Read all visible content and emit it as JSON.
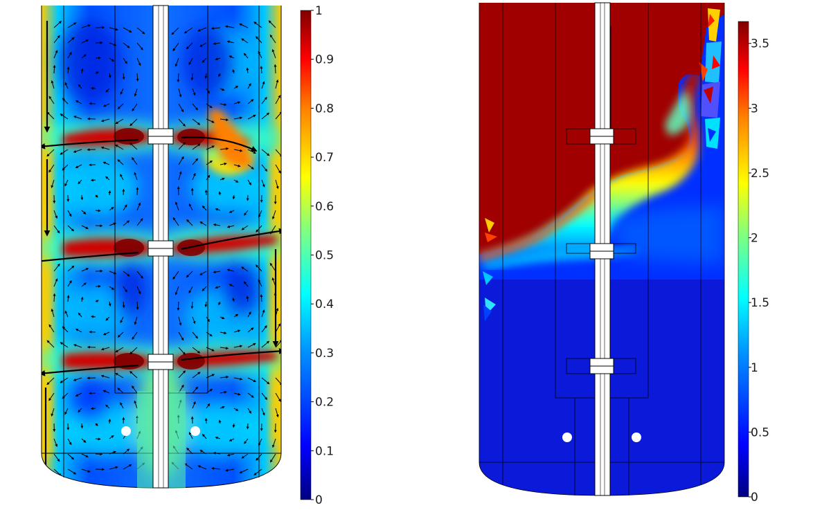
{
  "figure": {
    "panels": [
      {
        "id": "velocity",
        "kind": "color-contour-with-arrows",
        "colormap": [
          "#000080",
          "#0010ff",
          "#00a0ff",
          "#00ffff",
          "#7fff80",
          "#ffff00",
          "#ff8000",
          "#ff0000",
          "#800000"
        ],
        "colorbar": {
          "min": 0,
          "max": 1,
          "ticks": [
            "0",
            "0.1",
            "0.2",
            "0.3",
            "0.4",
            "0.5",
            "0.6",
            "0.7",
            "0.8",
            "0.9",
            "1"
          ]
        }
      },
      {
        "id": "concentration",
        "kind": "color-contour",
        "colormap": [
          "#000080",
          "#0010ff",
          "#00a0ff",
          "#00ffff",
          "#7fff80",
          "#ffff00",
          "#ff8000",
          "#ff0000",
          "#800000"
        ],
        "colorbar": {
          "min": 0,
          "max": 3.6,
          "ticks": [
            "0",
            "0.5",
            "1",
            "1.5",
            "2",
            "2.5",
            "3",
            "3.5"
          ]
        }
      }
    ]
  }
}
